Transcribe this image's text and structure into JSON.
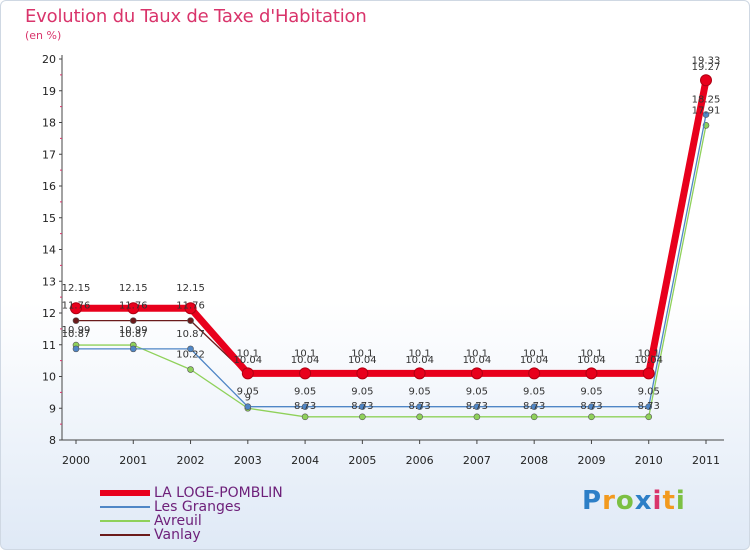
{
  "header": {
    "title": "Evolution du Taux de Taxe d'Habitation",
    "subtitle": "(en %)"
  },
  "chart_data": {
    "type": "line",
    "title": "Evolution du Taux de Taxe d'Habitation",
    "ylabel": "(en %)",
    "xlabel": "",
    "categories": [
      "2000",
      "2001",
      "2002",
      "2003",
      "2004",
      "2005",
      "2006",
      "2007",
      "2008",
      "2009",
      "2010",
      "2011"
    ],
    "ylim": [
      8,
      20
    ],
    "yticks": [
      8,
      9,
      10,
      11,
      12,
      13,
      14,
      15,
      16,
      17,
      18,
      19,
      20
    ],
    "grid": false,
    "legend_position": "bottom-left",
    "series": [
      {
        "name": "LA LOGE-POMBLIN",
        "color": "#e8001c",
        "values": [
          12.15,
          12.15,
          12.15,
          10.1,
          10.1,
          10.1,
          10.1,
          10.1,
          10.1,
          10.1,
          10.1,
          19.33
        ],
        "labels": [
          "12.15",
          "12.15",
          "12.15",
          "10.1",
          "10.1",
          "10.1",
          "10.1",
          "10.1",
          "10.1",
          "10.1",
          "10.1",
          "19.33"
        ]
      },
      {
        "name": "Les Granges",
        "color": "#4f86c6",
        "values": [
          10.87,
          10.87,
          10.87,
          9.05,
          9.05,
          9.05,
          9.05,
          9.05,
          9.05,
          9.05,
          9.05,
          18.25
        ],
        "labels": [
          "10.87",
          "10.87",
          "10.87",
          "9.05",
          "9.05",
          "9.05",
          "9.05",
          "9.05",
          "9.05",
          "9.05",
          "9.05",
          "18.25"
        ]
      },
      {
        "name": "Avreuil",
        "color": "#8fd15a",
        "values": [
          10.99,
          10.99,
          10.22,
          9.0,
          8.73,
          8.73,
          8.73,
          8.73,
          8.73,
          8.73,
          8.73,
          17.91
        ],
        "labels": [
          "10.99",
          "10.99",
          "10.22",
          "9",
          "8.73",
          "8.73",
          "8.73",
          "8.73",
          "8.73",
          "8.73",
          "8.73",
          "17.91"
        ]
      },
      {
        "name": "Vanlay",
        "color": "#6b1b1b",
        "values": [
          11.76,
          11.76,
          11.76,
          10.04,
          10.04,
          10.04,
          10.04,
          10.04,
          10.04,
          10.04,
          10.04,
          19.27
        ],
        "labels": [
          "11.76",
          "11.76",
          "11.76",
          "10.04",
          "10.04",
          "10.04",
          "10.04",
          "10.04",
          "10.04",
          "10.04",
          "10.04",
          "19.27"
        ]
      }
    ]
  },
  "legend": {
    "items": [
      {
        "label": "LA LOGE-POMBLIN",
        "color": "#e8001c"
      },
      {
        "label": "Les Granges",
        "color": "#4f86c6"
      },
      {
        "label": "Avreuil",
        "color": "#8fd15a"
      },
      {
        "label": "Vanlay",
        "color": "#6b1b1b"
      }
    ]
  },
  "logo": {
    "letters": [
      "P",
      "r",
      "o",
      "x",
      "i",
      "t",
      "i"
    ],
    "colors": [
      "#2d7fc7",
      "#f29a1f",
      "#7cc043",
      "#2d7fc7",
      "#d9346b",
      "#f29a1f",
      "#7cc043"
    ]
  }
}
